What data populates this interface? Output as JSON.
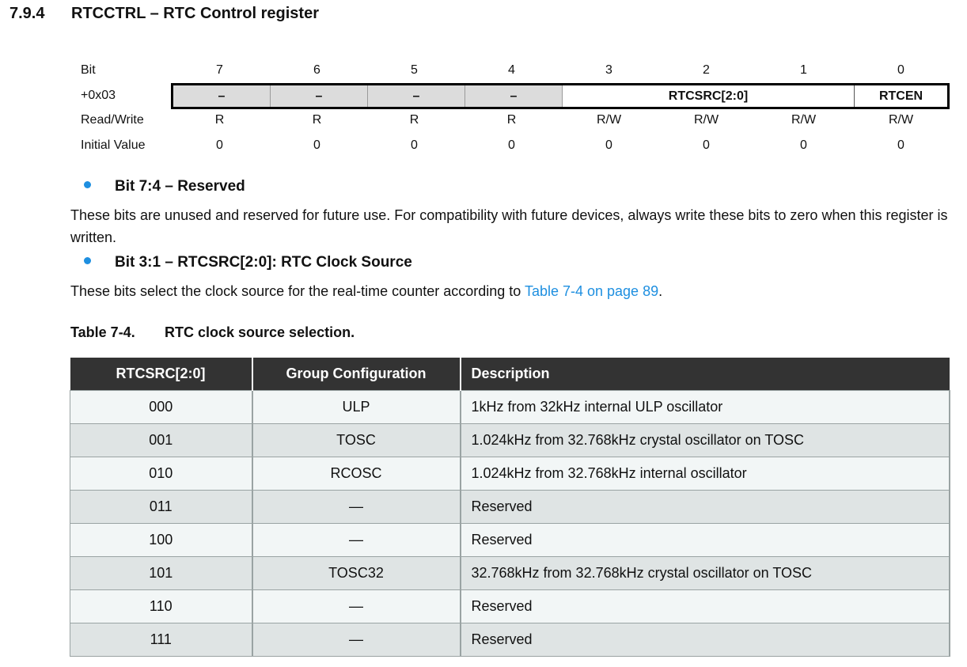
{
  "section": {
    "number": "7.9.4",
    "title": "RTCCTRL – RTC Control register"
  },
  "register": {
    "row_labels": {
      "bit": "Bit",
      "address": "+0x03",
      "rw": "Read/Write",
      "initial": "Initial Value"
    },
    "bits": [
      "7",
      "6",
      "5",
      "4",
      "3",
      "2",
      "1",
      "0"
    ],
    "fields": [
      "–",
      "–",
      "–",
      "–",
      "RTCSRC[2:0]",
      "RTCEN"
    ],
    "access": [
      "R",
      "R",
      "R",
      "R",
      "R/W",
      "R/W",
      "R/W",
      "R/W"
    ],
    "initial": [
      "0",
      "0",
      "0",
      "0",
      "0",
      "0",
      "0",
      "0"
    ]
  },
  "bullets": [
    {
      "title": "Bit 7:4 – Reserved",
      "text": "These bits are unused and reserved for future use. For compatibility with future devices, always write these bits to zero when this register is written."
    },
    {
      "title": "Bit 3:1 – RTCSRC[2:0]: RTC Clock Source",
      "text_before": "These bits select the clock source for the real-time counter according to ",
      "link": "Table 7-4 on page 89",
      "text_after": "."
    }
  ],
  "table": {
    "caption_number": "Table 7-4.",
    "caption_title": "RTC clock source selection.",
    "headers": [
      "RTCSRC[2:0]",
      "Group Configuration",
      "Description"
    ],
    "rows": [
      [
        "000",
        "ULP",
        "1kHz from 32kHz internal ULP oscillator"
      ],
      [
        "001",
        "TOSC",
        "1.024kHz from 32.768kHz crystal oscillator on TOSC"
      ],
      [
        "010",
        "RCOSC",
        "1.024kHz from 32.768kHz internal oscillator"
      ],
      [
        "011",
        "—",
        "Reserved"
      ],
      [
        "100",
        "—",
        "Reserved"
      ],
      [
        "101",
        "TOSC32",
        "32.768kHz from 32.768kHz crystal oscillator on TOSC"
      ],
      [
        "110",
        "—",
        "Reserved"
      ],
      [
        "111",
        "—",
        "Reserved"
      ]
    ]
  },
  "colors": {
    "accent": "#1e8fe0",
    "table_header": "#333333",
    "reserved_field": "#dcdcdc"
  }
}
